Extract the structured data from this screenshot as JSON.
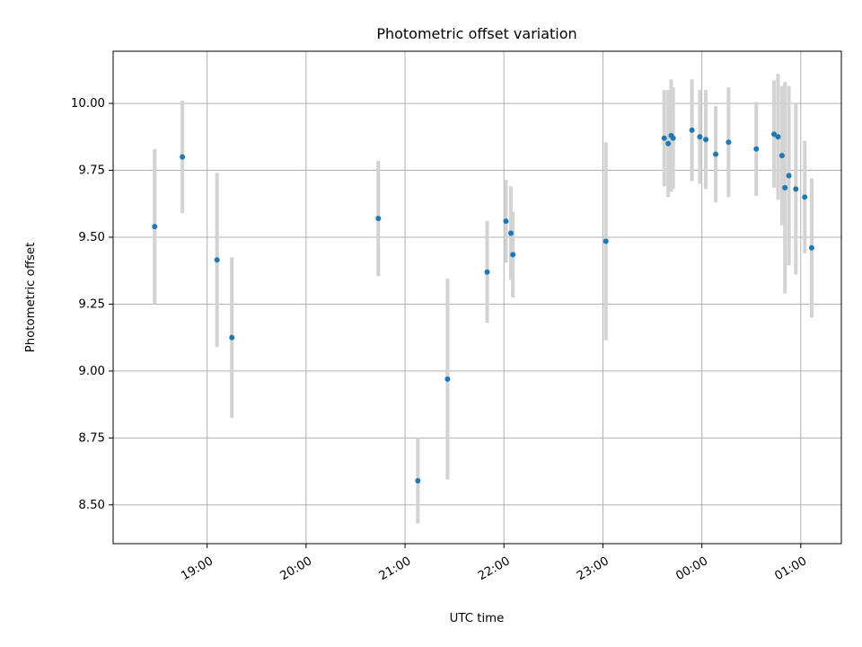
{
  "chart_data": {
    "type": "scatter",
    "title": "Photometric offset variation",
    "xlabel": "UTC time",
    "ylabel": "Photometric offset",
    "grid": true,
    "x_unit": "hours since 18:00 UTC",
    "xlim": [
      18.05,
      25.41
    ],
    "ylim": [
      8.355,
      10.195
    ],
    "x_ticks": [
      {
        "value": 19,
        "label": "19:00"
      },
      {
        "value": 20,
        "label": "20:00"
      },
      {
        "value": 21,
        "label": "21:00"
      },
      {
        "value": 22,
        "label": "22:00"
      },
      {
        "value": 23,
        "label": "23:00"
      },
      {
        "value": 24,
        "label": "00:00"
      },
      {
        "value": 25,
        "label": "01:00"
      }
    ],
    "y_ticks": [
      {
        "value": 8.5,
        "label": "8.50"
      },
      {
        "value": 8.75,
        "label": "8.75"
      },
      {
        "value": 9.0,
        "label": "9.00"
      },
      {
        "value": 9.25,
        "label": "9.25"
      },
      {
        "value": 9.5,
        "label": "9.50"
      },
      {
        "value": 9.75,
        "label": "9.75"
      },
      {
        "value": 10.0,
        "label": "10.00"
      }
    ],
    "colors": {
      "point": "#1f77b4",
      "errorbar": "#d3d3d3",
      "grid": "#b0b0b0",
      "axes": "#000000"
    },
    "points": [
      {
        "x": 18.47,
        "y": 9.54,
        "yerr": 0.29
      },
      {
        "x": 18.75,
        "y": 9.8,
        "yerr": 0.21
      },
      {
        "x": 19.1,
        "y": 9.415,
        "yerr": 0.325
      },
      {
        "x": 19.25,
        "y": 9.125,
        "yerr": 0.3
      },
      {
        "x": 20.73,
        "y": 9.57,
        "yerr": 0.215
      },
      {
        "x": 21.13,
        "y": 8.59,
        "yerr": 0.16
      },
      {
        "x": 21.43,
        "y": 8.97,
        "yerr": 0.375
      },
      {
        "x": 21.83,
        "y": 9.37,
        "yerr": 0.19
      },
      {
        "x": 22.02,
        "y": 9.56,
        "yerr": 0.155
      },
      {
        "x": 22.07,
        "y": 9.515,
        "yerr": 0.175
      },
      {
        "x": 22.09,
        "y": 9.435,
        "yerr": 0.16
      },
      {
        "x": 23.03,
        "y": 9.485,
        "yerr": 0.37
      },
      {
        "x": 23.62,
        "y": 9.87,
        "yerr": 0.18
      },
      {
        "x": 23.66,
        "y": 9.85,
        "yerr": 0.2
      },
      {
        "x": 23.69,
        "y": 9.88,
        "yerr": 0.21
      },
      {
        "x": 23.71,
        "y": 9.87,
        "yerr": 0.19
      },
      {
        "x": 23.9,
        "y": 9.9,
        "yerr": 0.19
      },
      {
        "x": 23.98,
        "y": 9.875,
        "yerr": 0.175
      },
      {
        "x": 24.04,
        "y": 9.865,
        "yerr": 0.185
      },
      {
        "x": 24.14,
        "y": 9.81,
        "yerr": 0.18
      },
      {
        "x": 24.27,
        "y": 9.855,
        "yerr": 0.205
      },
      {
        "x": 24.55,
        "y": 9.83,
        "yerr": 0.175
      },
      {
        "x": 24.73,
        "y": 9.885,
        "yerr": 0.2
      },
      {
        "x": 24.77,
        "y": 9.875,
        "yerr": 0.235
      },
      {
        "x": 24.81,
        "y": 9.805,
        "yerr": 0.26
      },
      {
        "x": 24.84,
        "y": 9.685,
        "yerr": 0.395
      },
      {
        "x": 24.88,
        "y": 9.73,
        "yerr": 0.335
      },
      {
        "x": 24.95,
        "y": 9.68,
        "yerr": 0.32
      },
      {
        "x": 25.04,
        "y": 9.65,
        "yerr": 0.21
      },
      {
        "x": 25.11,
        "y": 9.46,
        "yerr": 0.26
      }
    ]
  }
}
